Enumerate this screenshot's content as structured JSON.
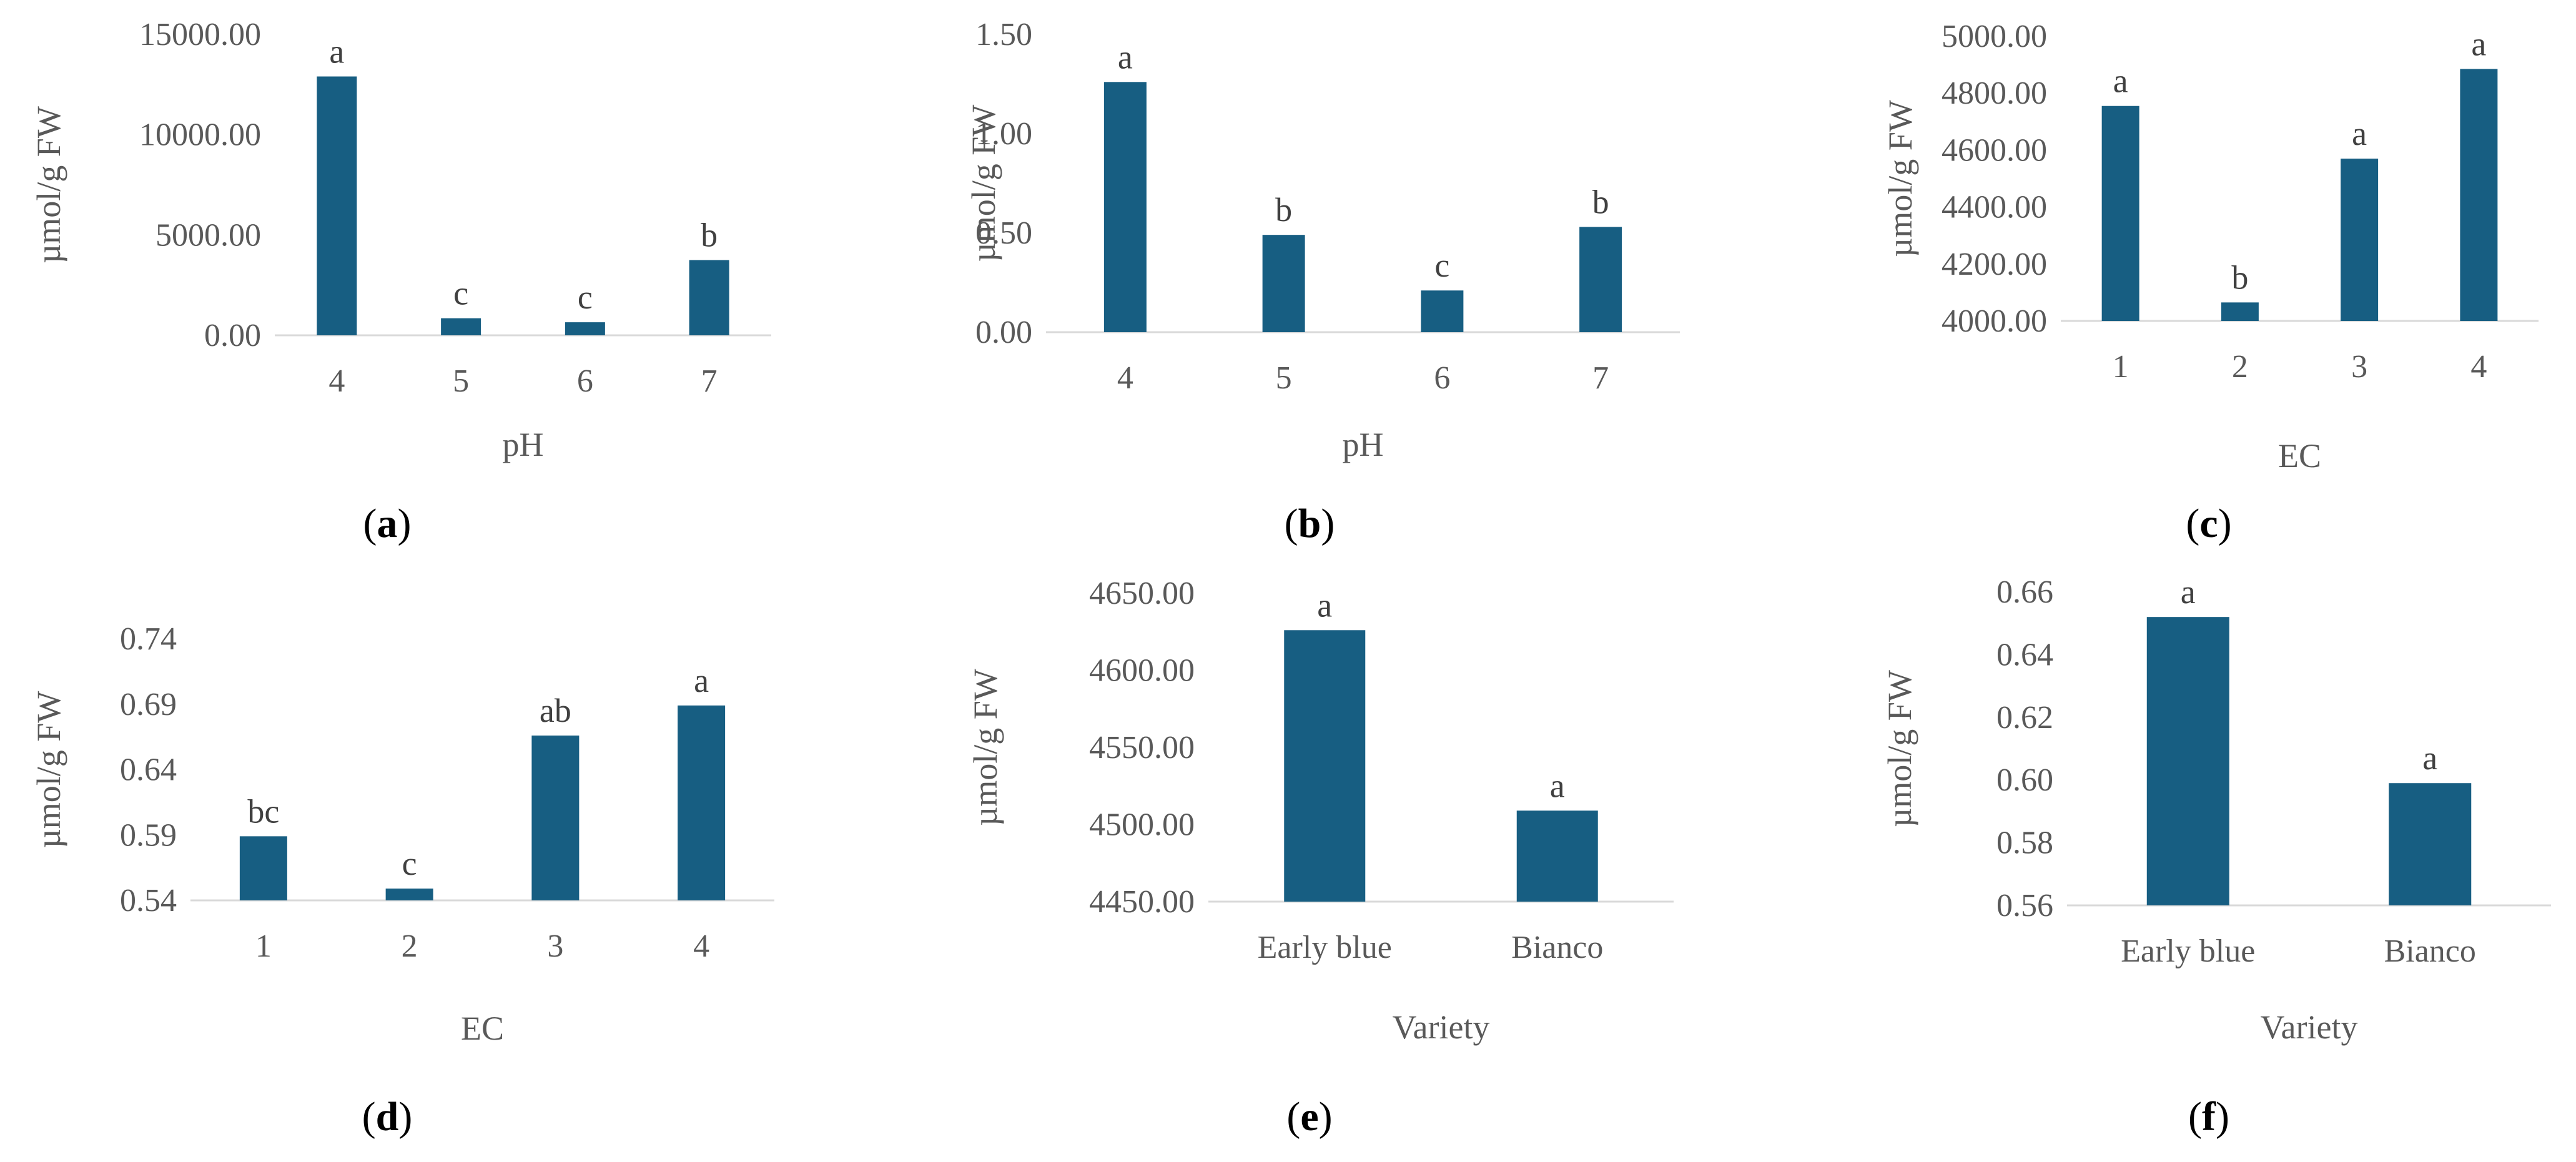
{
  "figure": {
    "bar_color": "#175E82",
    "axis_color": "#D9D9D9",
    "text_color": "#595959"
  },
  "chart_data": [
    {
      "panel": "a",
      "type": "bar",
      "xlabel": "pH",
      "ylabel": "µmol/g FW",
      "categories": [
        "4",
        "5",
        "6",
        "7"
      ],
      "values": [
        12900,
        850,
        650,
        3750
      ],
      "letters": [
        "a",
        "c",
        "c",
        "b"
      ],
      "yticks": [
        "0.00",
        "5000.00",
        "10000.00",
        "15000.00"
      ],
      "ylim": [
        0,
        15000
      ]
    },
    {
      "panel": "b",
      "type": "bar",
      "xlabel": "pH",
      "ylabel": "µmol/g FW",
      "categories": [
        "4",
        "5",
        "6",
        "7"
      ],
      "values": [
        1.26,
        0.49,
        0.21,
        0.53
      ],
      "letters": [
        "a",
        "b",
        "c",
        "b"
      ],
      "yticks": [
        "0.00",
        "0.50",
        "1.00",
        "1.50"
      ],
      "ylim": [
        0,
        1.5
      ]
    },
    {
      "panel": "c",
      "type": "bar",
      "xlabel": "EC",
      "ylabel": "µmol/g FW",
      "categories": [
        "1",
        "2",
        "3",
        "4"
      ],
      "values": [
        4755,
        4065,
        4570,
        4885
      ],
      "letters": [
        "a",
        "b",
        "a",
        "a"
      ],
      "yticks": [
        "4000.00",
        "4200.00",
        "4400.00",
        "4600.00",
        "4800.00",
        "5000.00"
      ],
      "ylim": [
        4000,
        5000
      ]
    },
    {
      "panel": "d",
      "type": "bar",
      "xlabel": "EC",
      "ylabel": "µmol/g FW",
      "categories": [
        "1",
        "2",
        "3",
        "4"
      ],
      "values": [
        0.589,
        0.549,
        0.666,
        0.689
      ],
      "letters": [
        "bc",
        "c",
        "ab",
        "a"
      ],
      "yticks": [
        "0.54",
        "0.59",
        "0.64",
        "0.69",
        "0.74"
      ],
      "ylim": [
        0.54,
        0.74
      ]
    },
    {
      "panel": "e",
      "type": "bar",
      "xlabel": "Variety",
      "ylabel": "µmol/g FW",
      "categories": [
        "Early blue",
        "Bianco"
      ],
      "values": [
        4626,
        4509
      ],
      "letters": [
        "a",
        "a"
      ],
      "yticks": [
        "4450.00",
        "4500.00",
        "4550.00",
        "4600.00",
        "4650.00"
      ],
      "ylim": [
        4450,
        4650
      ]
    },
    {
      "panel": "f",
      "type": "bar",
      "xlabel": "Variety",
      "ylabel": "µmol/g FW",
      "categories": [
        "Early blue",
        "Bianco"
      ],
      "values": [
        0.652,
        0.599
      ],
      "letters": [
        "a",
        "a"
      ],
      "yticks": [
        "0.56",
        "0.58",
        "0.60",
        "0.62",
        "0.64",
        "0.66"
      ],
      "ylim": [
        0.56,
        0.66
      ]
    }
  ]
}
